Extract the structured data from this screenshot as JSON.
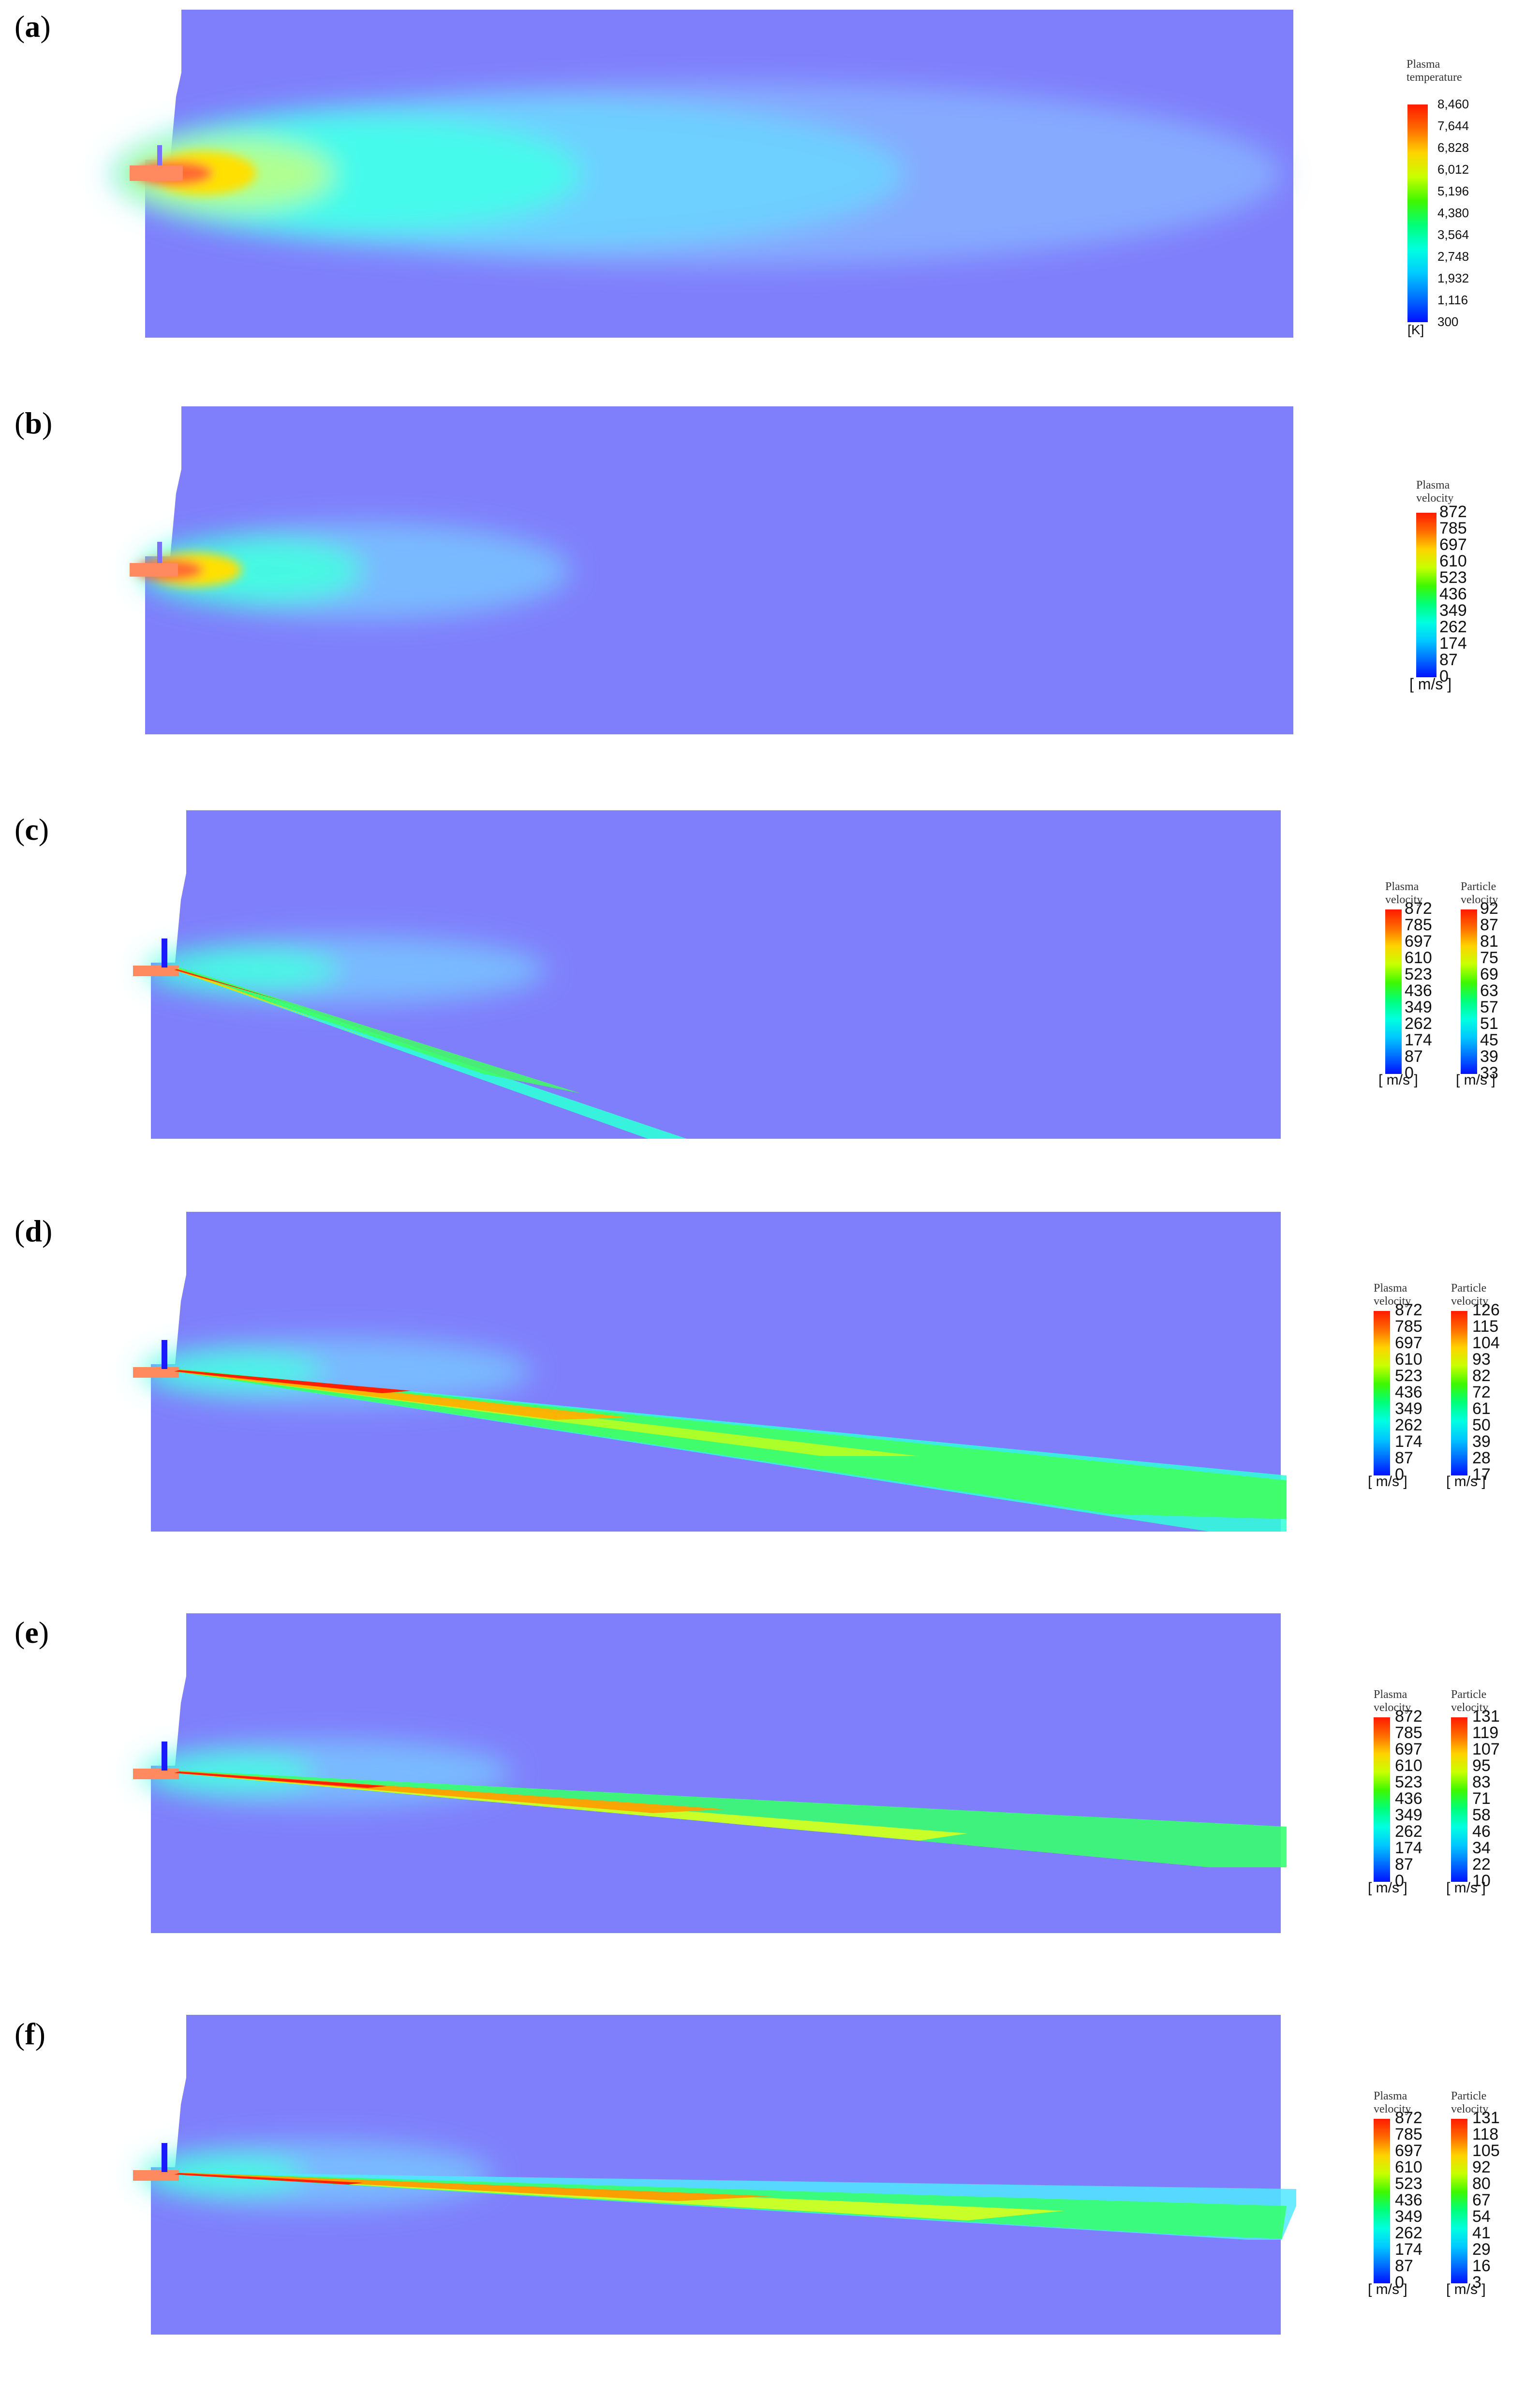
{
  "panels": [
    {
      "label": "a"
    },
    {
      "label": "b"
    },
    {
      "label": "c"
    },
    {
      "label": "d"
    },
    {
      "label": "e"
    },
    {
      "label": "f"
    }
  ],
  "legends": {
    "temperature": {
      "title": "Plasma temperature",
      "unit": "[K]",
      "ticks": [
        "8,460",
        "7,644",
        "6,828",
        "6,012",
        "5,196",
        "4,380",
        "3,564",
        "2,748",
        "1,932",
        "1,116",
        "300"
      ]
    },
    "plasma_velocity": {
      "title": "Plasma velocity",
      "unit": "[ m/s ]",
      "ticks": [
        "872",
        "785",
        "697",
        "610",
        "523",
        "436",
        "349",
        "262",
        "174",
        "87",
        "0"
      ]
    },
    "particle_c": {
      "title": "Particle velocity",
      "unit": "[ m/s ]",
      "ticks": [
        "92",
        "87",
        "81",
        "75",
        "69",
        "63",
        "57",
        "51",
        "45",
        "39",
        "33"
      ]
    },
    "particle_d": {
      "title": "Particle velocity",
      "unit": "[ m/s ]",
      "ticks": [
        "126",
        "115",
        "104",
        "93",
        "82",
        "72",
        "61",
        "50",
        "39",
        "28",
        "17"
      ]
    },
    "particle_e": {
      "title": "Particle velocity",
      "unit": "[ m/s ]",
      "ticks": [
        "131",
        "119",
        "107",
        "95",
        "83",
        "71",
        "58",
        "46",
        "34",
        "22",
        "10"
      ]
    },
    "particle_f": {
      "title": "Particle velocity",
      "unit": "[ m/s ]",
      "ticks": [
        "131",
        "118",
        "105",
        "92",
        "80",
        "67",
        "54",
        "41",
        "29",
        "16",
        "3"
      ]
    }
  },
  "colors": {
    "domain_background": "#7f7ffb",
    "rainbow": [
      "#ff1a00",
      "#ff6a00",
      "#ffd200",
      "#c8ff00",
      "#3ef800",
      "#00ff7a",
      "#00ffe0",
      "#00c8ff",
      "#0070ff",
      "#0010ff"
    ]
  }
}
